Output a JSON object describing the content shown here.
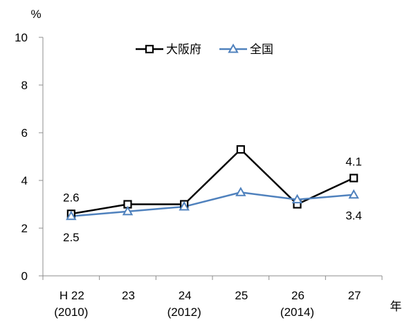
{
  "chart_data": {
    "type": "line",
    "y_unit": "%",
    "x_unit": "年",
    "categories": [
      {
        "line1": "H 22",
        "line2": "(2010)"
      },
      {
        "line1": "23",
        "line2": ""
      },
      {
        "line1": "24",
        "line2": "(2012)"
      },
      {
        "line1": "25",
        "line2": ""
      },
      {
        "line1": "26",
        "line2": "(2014)"
      },
      {
        "line1": "27",
        "line2": ""
      }
    ],
    "ylim": [
      0,
      10
    ],
    "yticks": [
      0,
      2,
      4,
      6,
      8,
      10
    ],
    "legend_position": "top",
    "series": [
      {
        "name": "大阪府",
        "values": [
          2.6,
          3.0,
          3.0,
          5.3,
          3.0,
          4.1
        ],
        "color": "#000000",
        "marker": "square"
      },
      {
        "name": "全国",
        "values": [
          2.5,
          2.7,
          2.9,
          3.5,
          3.2,
          3.4
        ],
        "color": "#4f81bd",
        "marker": "triangle"
      }
    ],
    "data_labels": [
      {
        "series": 0,
        "index": 0,
        "text": "2.6",
        "side": "above"
      },
      {
        "series": 1,
        "index": 0,
        "text": "2.5",
        "side": "below"
      },
      {
        "series": 0,
        "index": 5,
        "text": "4.1",
        "side": "above"
      },
      {
        "series": 1,
        "index": 5,
        "text": "3.4",
        "side": "below"
      }
    ]
  }
}
